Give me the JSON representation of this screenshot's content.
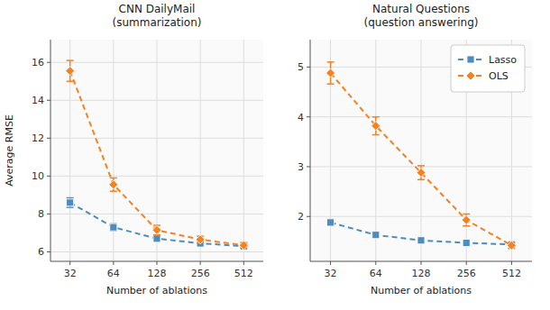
{
  "chart_data": [
    {
      "type": "line",
      "title": "CNN DailyMail\n(summarization)",
      "x_label": "Number of ablations",
      "y_label": "Average RMSE",
      "categories": [
        "32",
        "64",
        "128",
        "256",
        "512"
      ],
      "series": [
        {
          "name": "Lasso",
          "color": "#4C8CBF",
          "marker": "square",
          "line_style": "dashed",
          "values": [
            8.6,
            7.3,
            6.7,
            6.45,
            6.3
          ],
          "errors": [
            0.25,
            0.18,
            0.15,
            0.12,
            0.1
          ]
        },
        {
          "name": "OLS",
          "color": "#F5821F",
          "marker": "diamond",
          "line_style": "dashed",
          "values": [
            15.55,
            9.55,
            7.15,
            6.65,
            6.35
          ],
          "errors": [
            0.55,
            0.35,
            0.25,
            0.18,
            0.14
          ]
        }
      ],
      "ylim": [
        5.5,
        17.2
      ],
      "yticks": [
        6,
        8,
        10,
        12,
        14,
        16
      ],
      "grid": true
    },
    {
      "type": "line",
      "title": "Natural Questions\n(question answering)",
      "x_label": "Number of ablations",
      "categories": [
        "32",
        "64",
        "128",
        "256",
        "512"
      ],
      "series": [
        {
          "name": "Lasso",
          "color": "#4C8CBF",
          "marker": "square",
          "line_style": "dashed",
          "values": [
            1.88,
            1.63,
            1.52,
            1.47,
            1.44
          ],
          "errors": [
            0.06,
            0.05,
            0.04,
            0.03,
            0.02
          ]
        },
        {
          "name": "OLS",
          "color": "#F5821F",
          "marker": "diamond",
          "line_style": "dashed",
          "values": [
            4.88,
            3.82,
            2.88,
            1.93,
            1.42
          ],
          "errors": [
            0.22,
            0.18,
            0.14,
            0.12,
            0.06
          ]
        }
      ],
      "ylim": [
        1.1,
        5.55
      ],
      "yticks": [
        2,
        3,
        4,
        5
      ],
      "grid": true,
      "legend": "upper right"
    }
  ]
}
